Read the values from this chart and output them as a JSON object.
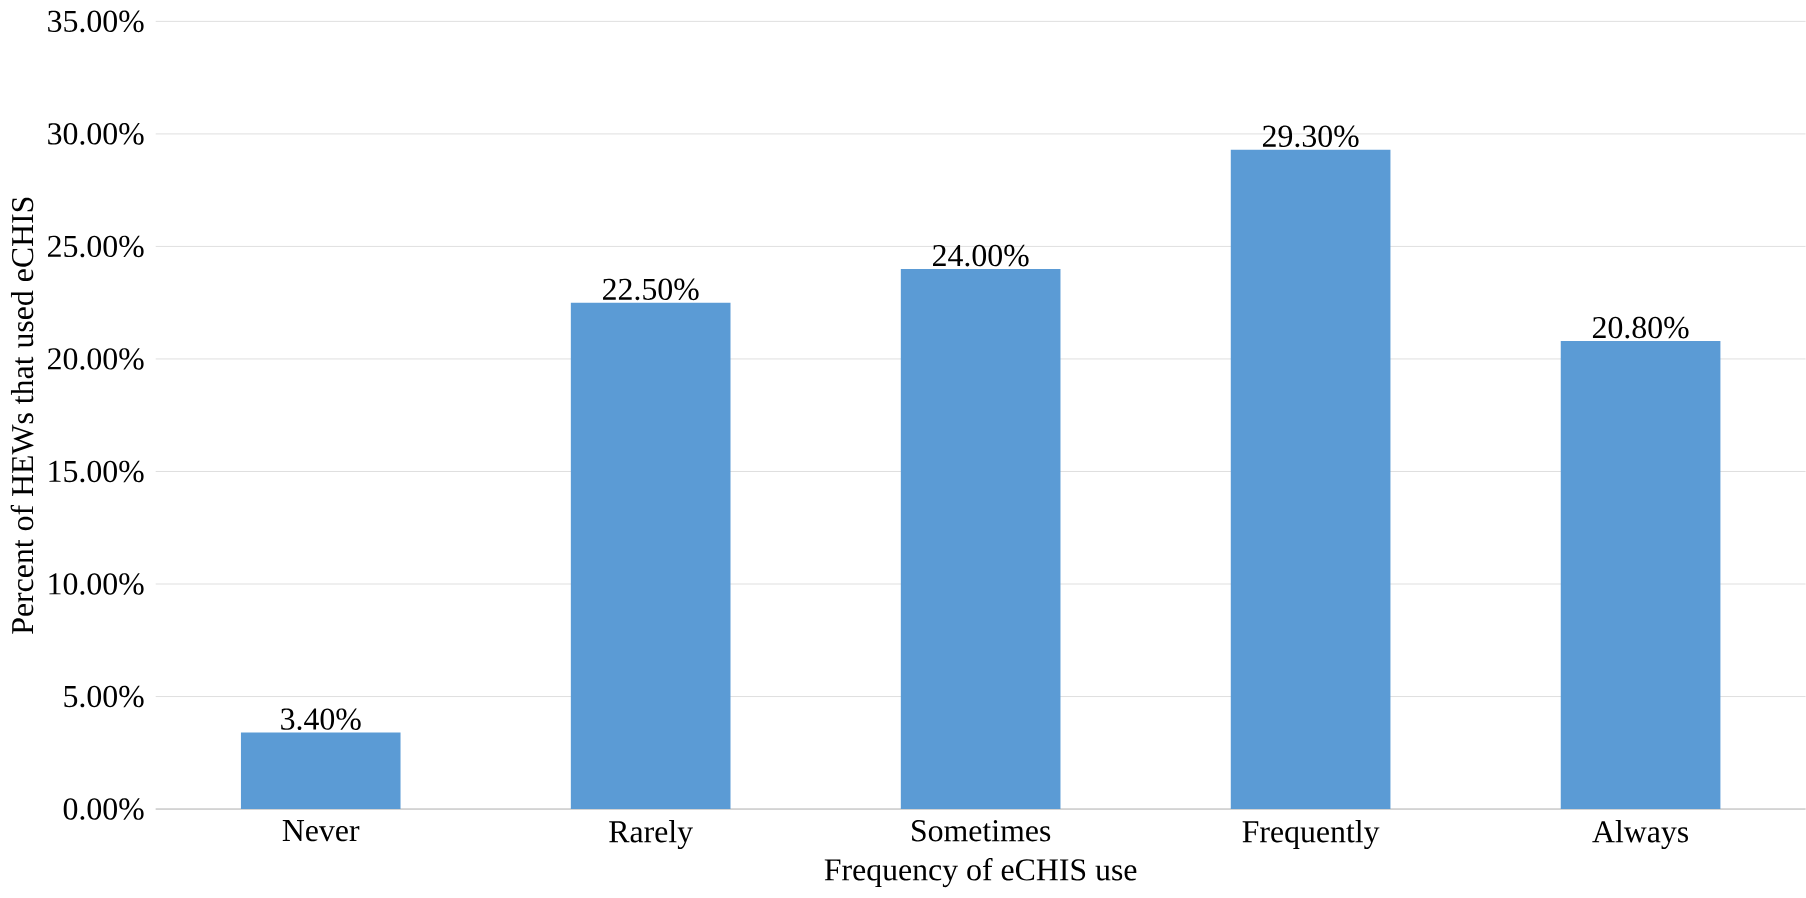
{
  "chart_data": {
    "type": "bar",
    "xlabel": "Frequency of eCHIS use",
    "ylabel": "Percent of HEWs that used eCHIS",
    "categories": [
      "Never",
      "Rarely",
      "Sometimes",
      "Frequently",
      "Always"
    ],
    "values": [
      3.4,
      22.5,
      24.0,
      29.3,
      20.8
    ],
    "value_labels": [
      "3.40%",
      "22.50%",
      "24.00%",
      "29.30%",
      "20.80%"
    ],
    "color": "#5b9bd5",
    "ylim": [
      0,
      35
    ],
    "yticks": [
      {
        "value": 0,
        "label": "0.00%"
      },
      {
        "value": 5,
        "label": "5.00%"
      },
      {
        "value": 10,
        "label": "10.00%"
      },
      {
        "value": 15,
        "label": "15.00%"
      },
      {
        "value": 20,
        "label": "20.00%"
      },
      {
        "value": 25,
        "label": "25.00%"
      },
      {
        "value": 30,
        "label": "30.00%"
      },
      {
        "value": 35,
        "label": "35.00%"
      }
    ],
    "grid": "y"
  }
}
